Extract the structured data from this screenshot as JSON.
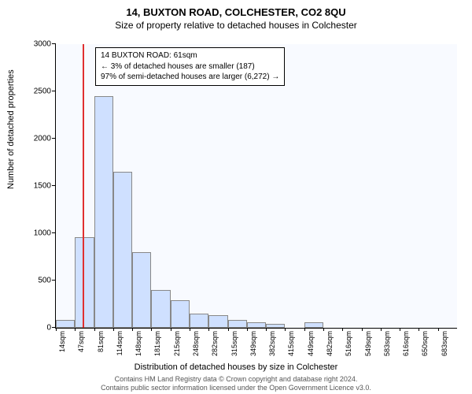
{
  "title_main": "14, BUXTON ROAD, COLCHESTER, CO2 8QU",
  "title_sub": "Size of property relative to detached houses in Colchester",
  "ylabel": "Number of detached properties",
  "xlabel": "Distribution of detached houses by size in Colchester",
  "footer_line1": "Contains HM Land Registry data © Crown copyright and database right 2024.",
  "footer_line2": "Contains public sector information licensed under the Open Government Licence v3.0.",
  "chart": {
    "type": "histogram",
    "background_color": "#f8faff",
    "bar_fill": "#cfe0ff",
    "bar_stroke": "#888888",
    "marker_color": "#e03030",
    "ylim": [
      0,
      3000
    ],
    "ytick_step": 500,
    "yticks": [
      0,
      500,
      1000,
      1500,
      2000,
      2500,
      3000
    ],
    "xticks": [
      "14sqm",
      "47sqm",
      "81sqm",
      "114sqm",
      "148sqm",
      "181sqm",
      "215sqm",
      "248sqm",
      "282sqm",
      "315sqm",
      "349sqm",
      "382sqm",
      "415sqm",
      "449sqm",
      "482sqm",
      "516sqm",
      "549sqm",
      "583sqm",
      "616sqm",
      "650sqm",
      "683sqm"
    ],
    "values": [
      80,
      960,
      2450,
      1650,
      800,
      400,
      290,
      150,
      130,
      80,
      60,
      45,
      0,
      55,
      0,
      0,
      0,
      0,
      0,
      0,
      0
    ],
    "marker_bin_index": 1,
    "marker_fraction_in_bin": 0.42,
    "annotation": {
      "line1": "14 BUXTON ROAD: 61sqm",
      "line2": "← 3% of detached houses are smaller (187)",
      "line3": "97% of semi-detached houses are larger (6,272) →"
    }
  }
}
